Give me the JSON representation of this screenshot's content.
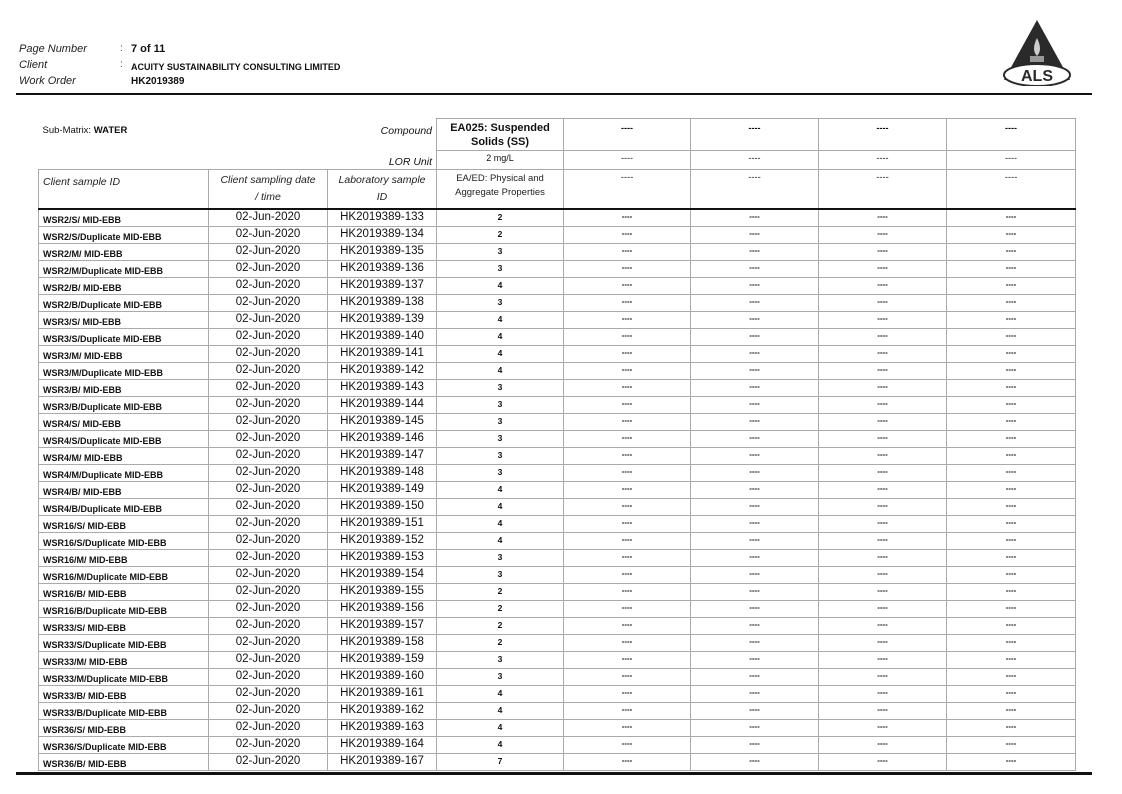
{
  "header": {
    "page_number_label": "Page Number",
    "page_number": "7 of 11",
    "client_label": "Client",
    "client": "ACUITY SUSTAINABILITY CONSULTING LIMITED",
    "work_order_label": "Work Order",
    "work_order": "HK2019389",
    "colon": ":",
    "logo_text": "ALS"
  },
  "table": {
    "sub_matrix_label": "Sub-Matrix: ",
    "sub_matrix": "WATER",
    "compound_label": "Compound",
    "lor_unit_label": "LOR Unit",
    "col_client_sample_id": "Client sample ID",
    "col_sampling_date_1": "Client sampling date",
    "col_sampling_date_2": "/ time",
    "col_lab_id_1": "Laboratory sample",
    "col_lab_id_2": "ID",
    "compound": "EA025: Suspended Solids (SS)",
    "lor_unit": "2 mg/L",
    "method_group": "EA/ED: Physical and Aggregate Properties",
    "empty_placeholder": "----",
    "empty_columns": 4,
    "rows": [
      [
        "WSR2/S/ MID-EBB",
        "02-Jun-2020",
        "HK2019389-133",
        "2"
      ],
      [
        "WSR2/S/Duplicate MID-EBB",
        "02-Jun-2020",
        "HK2019389-134",
        "2"
      ],
      [
        "WSR2/M/ MID-EBB",
        "02-Jun-2020",
        "HK2019389-135",
        "3"
      ],
      [
        "WSR2/M/Duplicate MID-EBB",
        "02-Jun-2020",
        "HK2019389-136",
        "3"
      ],
      [
        "WSR2/B/ MID-EBB",
        "02-Jun-2020",
        "HK2019389-137",
        "4"
      ],
      [
        "WSR2/B/Duplicate MID-EBB",
        "02-Jun-2020",
        "HK2019389-138",
        "3"
      ],
      [
        "WSR3/S/ MID-EBB",
        "02-Jun-2020",
        "HK2019389-139",
        "4"
      ],
      [
        "WSR3/S/Duplicate MID-EBB",
        "02-Jun-2020",
        "HK2019389-140",
        "4"
      ],
      [
        "WSR3/M/ MID-EBB",
        "02-Jun-2020",
        "HK2019389-141",
        "4"
      ],
      [
        "WSR3/M/Duplicate MID-EBB",
        "02-Jun-2020",
        "HK2019389-142",
        "4"
      ],
      [
        "WSR3/B/ MID-EBB",
        "02-Jun-2020",
        "HK2019389-143",
        "3"
      ],
      [
        "WSR3/B/Duplicate MID-EBB",
        "02-Jun-2020",
        "HK2019389-144",
        "3"
      ],
      [
        "WSR4/S/ MID-EBB",
        "02-Jun-2020",
        "HK2019389-145",
        "3"
      ],
      [
        "WSR4/S/Duplicate MID-EBB",
        "02-Jun-2020",
        "HK2019389-146",
        "3"
      ],
      [
        "WSR4/M/ MID-EBB",
        "02-Jun-2020",
        "HK2019389-147",
        "3"
      ],
      [
        "WSR4/M/Duplicate MID-EBB",
        "02-Jun-2020",
        "HK2019389-148",
        "3"
      ],
      [
        "WSR4/B/ MID-EBB",
        "02-Jun-2020",
        "HK2019389-149",
        "4"
      ],
      [
        "WSR4/B/Duplicate MID-EBB",
        "02-Jun-2020",
        "HK2019389-150",
        "4"
      ],
      [
        "WSR16/S/ MID-EBB",
        "02-Jun-2020",
        "HK2019389-151",
        "4"
      ],
      [
        "WSR16/S/Duplicate MID-EBB",
        "02-Jun-2020",
        "HK2019389-152",
        "4"
      ],
      [
        "WSR16/M/ MID-EBB",
        "02-Jun-2020",
        "HK2019389-153",
        "3"
      ],
      [
        "WSR16/M/Duplicate MID-EBB",
        "02-Jun-2020",
        "HK2019389-154",
        "3"
      ],
      [
        "WSR16/B/ MID-EBB",
        "02-Jun-2020",
        "HK2019389-155",
        "2"
      ],
      [
        "WSR16/B/Duplicate MID-EBB",
        "02-Jun-2020",
        "HK2019389-156",
        "2"
      ],
      [
        "WSR33/S/ MID-EBB",
        "02-Jun-2020",
        "HK2019389-157",
        "2"
      ],
      [
        "WSR33/S/Duplicate MID-EBB",
        "02-Jun-2020",
        "HK2019389-158",
        "2"
      ],
      [
        "WSR33/M/ MID-EBB",
        "02-Jun-2020",
        "HK2019389-159",
        "3"
      ],
      [
        "WSR33/M/Duplicate MID-EBB",
        "02-Jun-2020",
        "HK2019389-160",
        "3"
      ],
      [
        "WSR33/B/ MID-EBB",
        "02-Jun-2020",
        "HK2019389-161",
        "4"
      ],
      [
        "WSR33/B/Duplicate MID-EBB",
        "02-Jun-2020",
        "HK2019389-162",
        "4"
      ],
      [
        "WSR36/S/ MID-EBB",
        "02-Jun-2020",
        "HK2019389-163",
        "4"
      ],
      [
        "WSR36/S/Duplicate MID-EBB",
        "02-Jun-2020",
        "HK2019389-164",
        "4"
      ],
      [
        "WSR36/B/ MID-EBB",
        "02-Jun-2020",
        "HK2019389-167",
        "7"
      ]
    ]
  }
}
